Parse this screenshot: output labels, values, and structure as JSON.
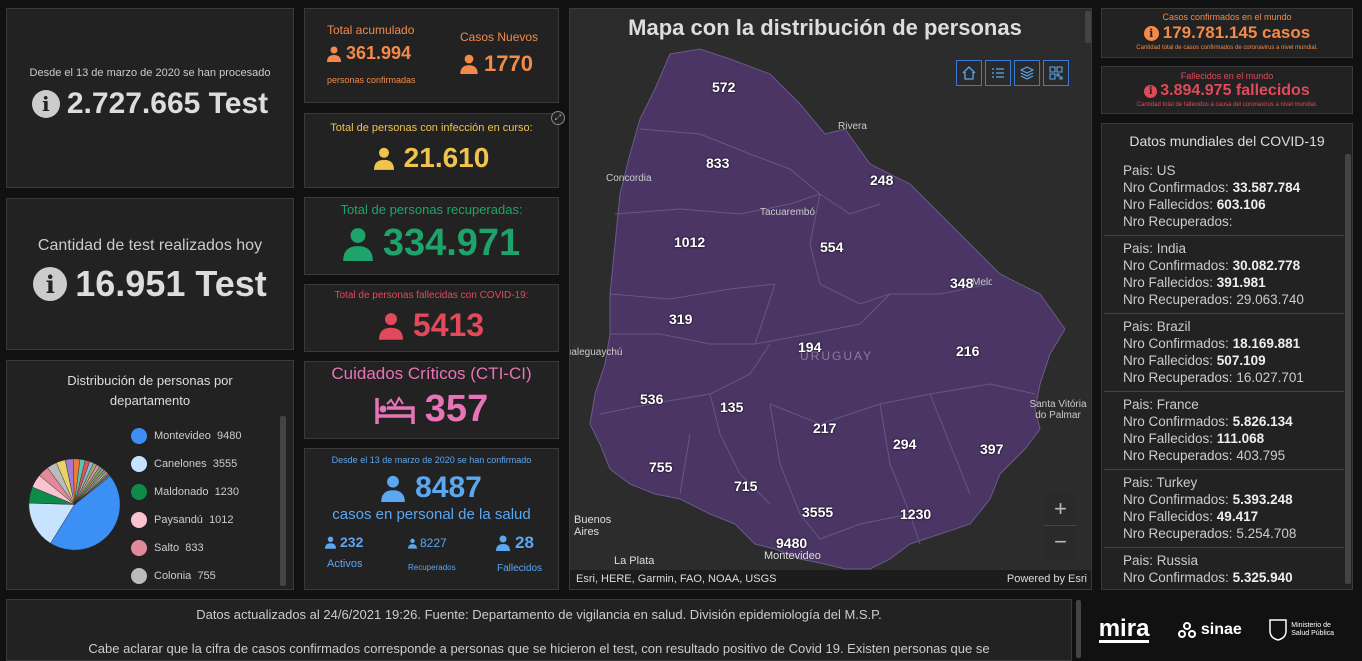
{
  "tests_total": {
    "caption": "Desde el 13 de marzo de 2020 se han procesado",
    "value": "2.727.665 Test"
  },
  "tests_today": {
    "caption": "Cantidad de test realizados hoy",
    "value": "16.951 Test"
  },
  "distribution": {
    "title": "Distribución de personas por departamento",
    "items": [
      {
        "label": "Montevideo",
        "value": "9480",
        "color": "#3b8ff5"
      },
      {
        "label": "Canelones",
        "value": "3555",
        "color": "#c7e3ff"
      },
      {
        "label": "Maldonado",
        "value": "1230",
        "color": "#0e8a4a"
      },
      {
        "label": "Paysandú",
        "value": "1012",
        "color": "#f9c2cf"
      },
      {
        "label": "Salto",
        "value": "833",
        "color": "#e38a9a"
      },
      {
        "label": "Colonia",
        "value": "755",
        "color": "#bbbbbb"
      }
    ]
  },
  "accumulated": {
    "label": "Total acumulado",
    "value": "361.994",
    "sub": "personas confirmadas",
    "new_label": "Casos Nuevos",
    "new_value": "1770"
  },
  "active": {
    "label": "Total de personas con infección en curso:",
    "value": "21.610"
  },
  "recovered": {
    "label": "Total de personas recuperadas:",
    "value": "334.971"
  },
  "deceased": {
    "label": "Total de personas fallecidas con COVID-19:",
    "value": "5413"
  },
  "critical": {
    "label": "Cuidados Críticos (CTI-CI)",
    "value": "357"
  },
  "health_staff": {
    "caption": "Desde el 13 de marzo de 2020 se han confirmado",
    "value": "8487",
    "sub": "casos en personal de la salud",
    "activos": "232",
    "activos_label": "Activos",
    "recuperados": "8227",
    "recuperados_label": "Recuperados",
    "fallecidos": "28",
    "fallecidos_label": "Fallecidos"
  },
  "map": {
    "title": "Mapa con la distribución de personas",
    "attribution": "Esri, HERE, Garmin, FAO, NOAA, USGS",
    "powered": "Powered by Esri",
    "country_label": "URUGUAY",
    "places": [
      "Rivera",
      "Concordia",
      "Tacuarembó",
      "Melo",
      "Gualeguaychú",
      "Santa Vitória do Palmar",
      "Buenos Aires",
      "La Plata",
      "Montevideo"
    ],
    "counts": [
      "572",
      "833",
      "248",
      "1012",
      "554",
      "348",
      "319",
      "194",
      "216",
      "536",
      "135",
      "217",
      "294",
      "397",
      "755",
      "715",
      "3555",
      "1230",
      "9480"
    ]
  },
  "world": {
    "confirmed_label": "Casos confirmados en el mundo",
    "confirmed_value": "179.781.145 casos",
    "confirmed_sub": "Cantidad total de casos confirmados de coronavirus a nivel mundial.",
    "deaths_label": "Fallecidos en el mundo",
    "deaths_value": "3.894.975 fallecidos",
    "deaths_sub": "Cantidad total de fallecidos a causa del coronavirus a nivel mundial.",
    "list_title": "Datos mundiales del COVID-19",
    "countries": [
      {
        "pais": "Pais: US",
        "conf": "33.587.784",
        "fall": "603.106",
        "rec": ""
      },
      {
        "pais": "Pais: India",
        "conf": "30.082.778",
        "fall": "391.981",
        "rec": "29.063.740"
      },
      {
        "pais": "Pais: Brazil",
        "conf": "18.169.881",
        "fall": "507.109",
        "rec": "16.027.701"
      },
      {
        "pais": "Pais: France",
        "conf": "5.826.134",
        "fall": "111.068",
        "rec": "403.795"
      },
      {
        "pais": "Pais: Turkey",
        "conf": "5.393.248",
        "fall": "49.417",
        "rec": "5.254.708"
      },
      {
        "pais": "Pais: Russia",
        "conf": "5.325.940",
        "fall": "",
        "rec": ""
      }
    ],
    "conf_label": "Nro Confirmados:",
    "fall_label": "Nro Fallecidos:",
    "rec_label": "Nro Recuperados:"
  },
  "footer": {
    "line1": "Datos actualizados al 24/6/2021 19:26. Fuente: Departamento de vigilancia en salud. División epidemiología del M.S.P.",
    "line2": "Cabe aclarar que la cifra de casos confirmados corresponde a personas que se hicieron el test, con resultado positivo de Covid 19. Existen personas que se",
    "logo1": "mira",
    "logo2": "sinae",
    "logo3": "Ministerio de Salud Pública"
  }
}
